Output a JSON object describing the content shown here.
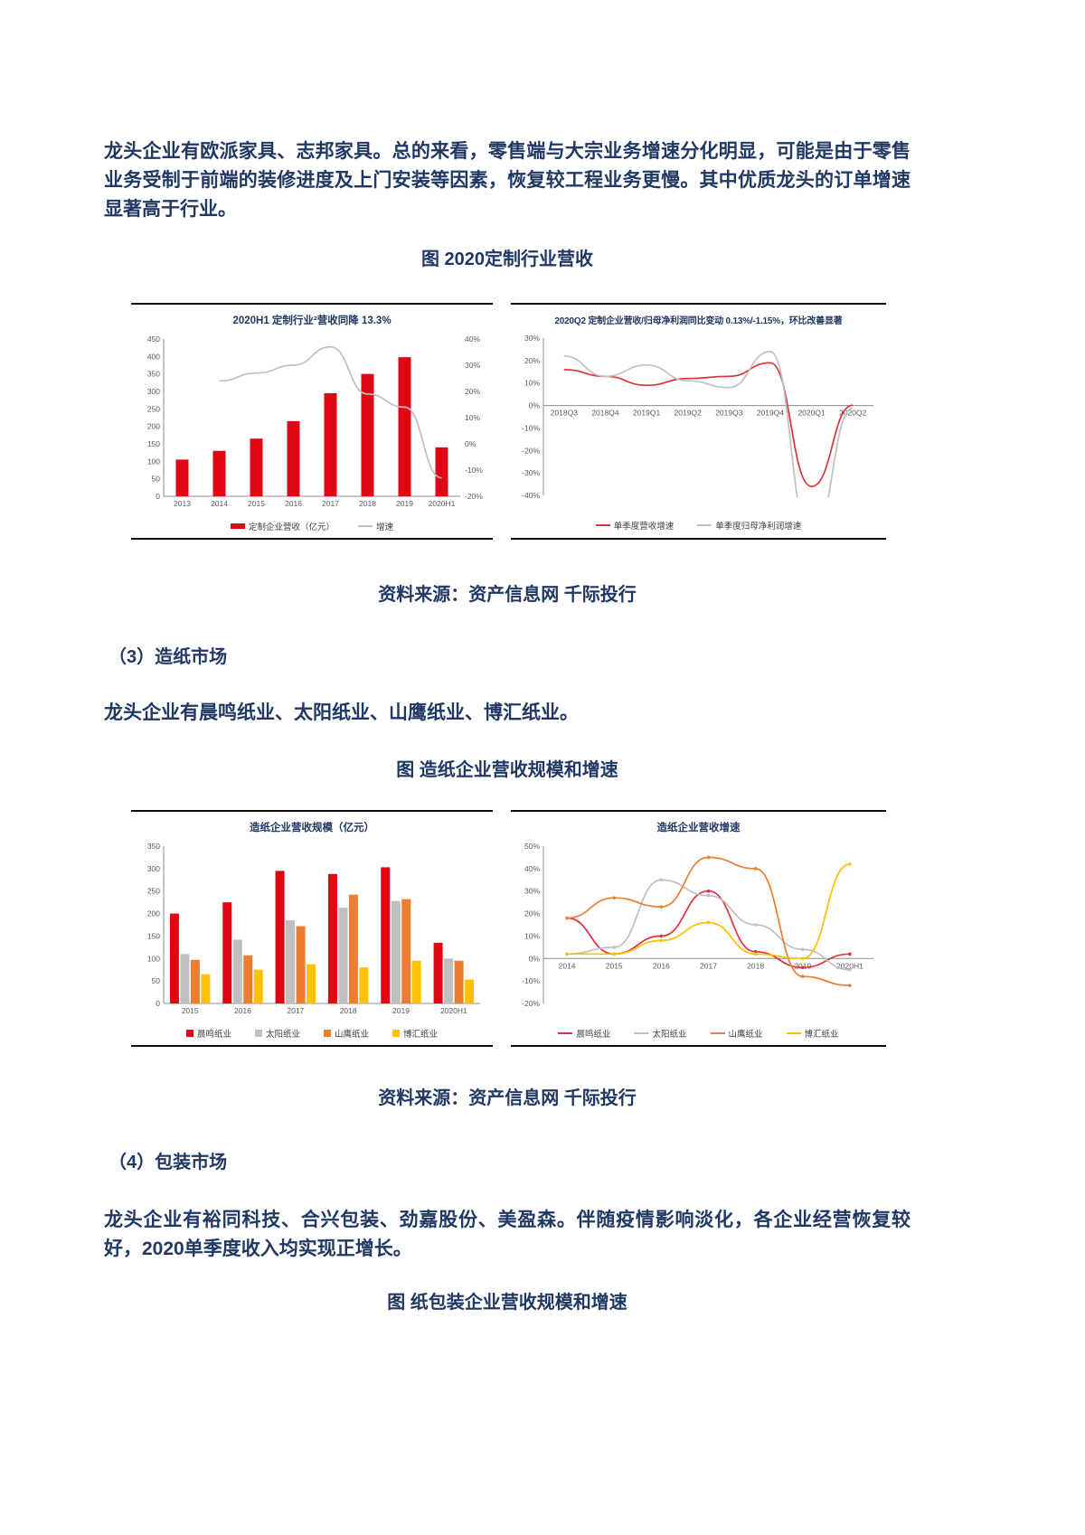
{
  "page": {
    "paragraph1": "龙头企业有欧派家具、志邦家具。总的来看，零售端与大宗业务增速分化明显，可能是由于零售业务受制于前端的装修进度及上门安装等因素，恢复较工程业务更慢。其中优质龙头的订单增速显著高于行业。",
    "figure1_caption": "图 2020定制行业营收",
    "source1": "资料来源：资产信息网 千际投行",
    "section3_heading": "（3）造纸市场",
    "paragraph3": "龙头企业有晨鸣纸业、太阳纸业、山鹰纸业、博汇纸业。",
    "figure2_caption": "图 造纸企业营收规模和增速",
    "source2": "资料来源：资产信息网 千际投行",
    "section4_heading": "（4）包装市场",
    "paragraph4": "龙头企业有裕同科技、合兴包装、劲嘉股份、美盈森。伴随疫情影响淡化，各企业经营恢复较好，2020单季度收入均实现正增长。",
    "figure3_caption": "图 纸包装企业营收规模和增速"
  },
  "colors": {
    "text_navy": "#1f3864",
    "bar_red": "#e00714",
    "line_gray": "#bfbfbf",
    "orange": "#ed7d31",
    "yellow": "#ffc000"
  },
  "chart_data": [
    {
      "type": "bar",
      "title": "2020H1 定制行业²营收同降 13.3%",
      "categories": [
        "2013",
        "2014",
        "2015",
        "2016",
        "2017",
        "2018",
        "2019",
        "2020H1"
      ],
      "series": [
        {
          "name": "定制企业营收（亿元）",
          "type": "bar",
          "axis": "left",
          "color": "#e00714",
          "values": [
            105,
            130,
            165,
            215,
            295,
            350,
            398,
            140
          ]
        },
        {
          "name": "增速",
          "type": "line",
          "axis": "right",
          "color": "#bfbfbf",
          "values": [
            null,
            24,
            27,
            30,
            37,
            19,
            14,
            -13
          ]
        }
      ],
      "left_axis": {
        "min": 0,
        "max": 450,
        "step": 50,
        "suffix": ""
      },
      "right_axis": {
        "min": -20,
        "max": 40,
        "step": 10,
        "suffix": "%"
      }
    },
    {
      "type": "line",
      "title": "2020Q2 定制企业营收/归母净利润同比变动 0.13%/-1.15%，环比改善显著",
      "categories": [
        "2018Q3",
        "2018Q4",
        "2019Q1",
        "2019Q2",
        "2019Q3",
        "2019Q4",
        "2020Q1",
        "2020Q2"
      ],
      "series": [
        {
          "name": "单季度营收增速",
          "color": "#e0313f",
          "values": [
            16,
            13,
            9,
            12,
            13,
            19,
            -36,
            0.13
          ]
        },
        {
          "name": "单季度归母净利润增速",
          "color": "#c0c0c0",
          "values": [
            22,
            13,
            18,
            11,
            8,
            24,
            -60,
            -1.15
          ]
        }
      ],
      "y_axis": {
        "min": -40,
        "max": 30,
        "step": 10,
        "suffix": "%"
      }
    },
    {
      "type": "grouped-bar",
      "title": "造纸企业营收规模（亿元）",
      "categories": [
        "2015",
        "2016",
        "2017",
        "2018",
        "2019",
        "2020H1"
      ],
      "series": [
        {
          "name": "晨鸣纸业",
          "color": "#e00714",
          "values": [
            200,
            225,
            295,
            288,
            303,
            135
          ]
        },
        {
          "name": "太阳纸业",
          "color": "#bfbfbf",
          "values": [
            110,
            142,
            185,
            213,
            228,
            100
          ]
        },
        {
          "name": "山鹰纸业",
          "color": "#ed7d31",
          "values": [
            97,
            107,
            172,
            242,
            232,
            95
          ]
        },
        {
          "name": "博汇纸业",
          "color": "#ffc000",
          "values": [
            65,
            75,
            87,
            80,
            95,
            53
          ]
        }
      ],
      "y_axis": {
        "min": 0,
        "max": 350,
        "step": 50,
        "suffix": ""
      }
    },
    {
      "type": "line",
      "markers": true,
      "title": "造纸企业营收增速",
      "categories": [
        "2014",
        "2015",
        "2016",
        "2017",
        "2018",
        "2019",
        "2020H1"
      ],
      "series": [
        {
          "name": "晨鸣纸业",
          "color": "#e0313f",
          "values": [
            18,
            2,
            10,
            30,
            3,
            -4,
            2
          ]
        },
        {
          "name": "太阳纸业",
          "color": "#bfbfbf",
          "values": [
            2,
            5,
            35,
            28,
            15,
            4,
            -5
          ]
        },
        {
          "name": "山鹰纸业",
          "color": "#ed7d31",
          "values": [
            18,
            27,
            23,
            45,
            40,
            -8,
            -12
          ]
        },
        {
          "name": "博汇纸业",
          "color": "#ffc000",
          "values": [
            2,
            2,
            8,
            16,
            2,
            0,
            42
          ]
        }
      ],
      "y_axis": {
        "min": -20,
        "max": 50,
        "step": 10,
        "suffix": "%"
      }
    }
  ]
}
